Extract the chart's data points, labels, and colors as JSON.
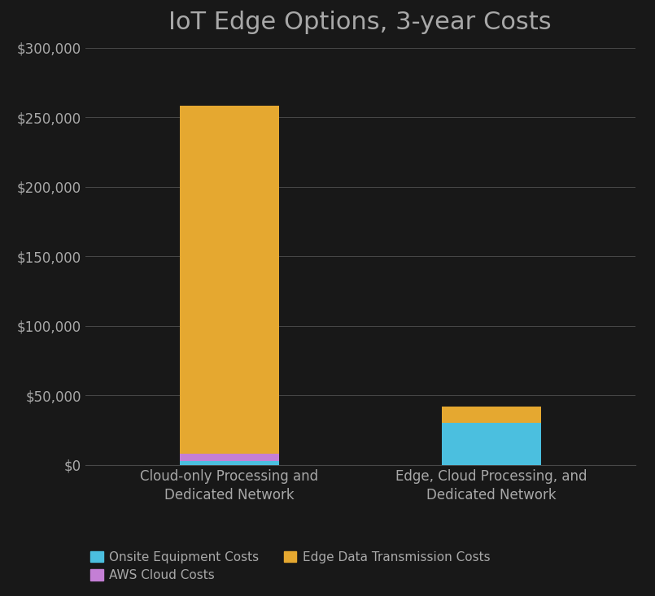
{
  "title": "IoT Edge Options, 3-year Costs",
  "categories": [
    "Cloud-only Processing and\nDedicated Network",
    "Edge, Cloud Processing, and\nDedicated Network"
  ],
  "series": {
    "Onsite Equipment Costs": {
      "values": [
        3000,
        30000
      ],
      "color": "#4BBFDF"
    },
    "AWS Cloud Costs": {
      "values": [
        5000,
        0
      ],
      "color": "#C47FD5"
    },
    "Edge Data Transmission Costs": {
      "values": [
        250000,
        12000
      ],
      "color": "#E5A830"
    }
  },
  "ylim": [
    0,
    300000
  ],
  "yticks": [
    0,
    50000,
    100000,
    150000,
    200000,
    250000,
    300000
  ],
  "background_color": "#181818",
  "text_color": "#a8a8a8",
  "grid_color": "#484848",
  "title_fontsize": 22,
  "tick_fontsize": 12,
  "label_fontsize": 12,
  "legend_fontsize": 11,
  "bar_width": 0.38
}
